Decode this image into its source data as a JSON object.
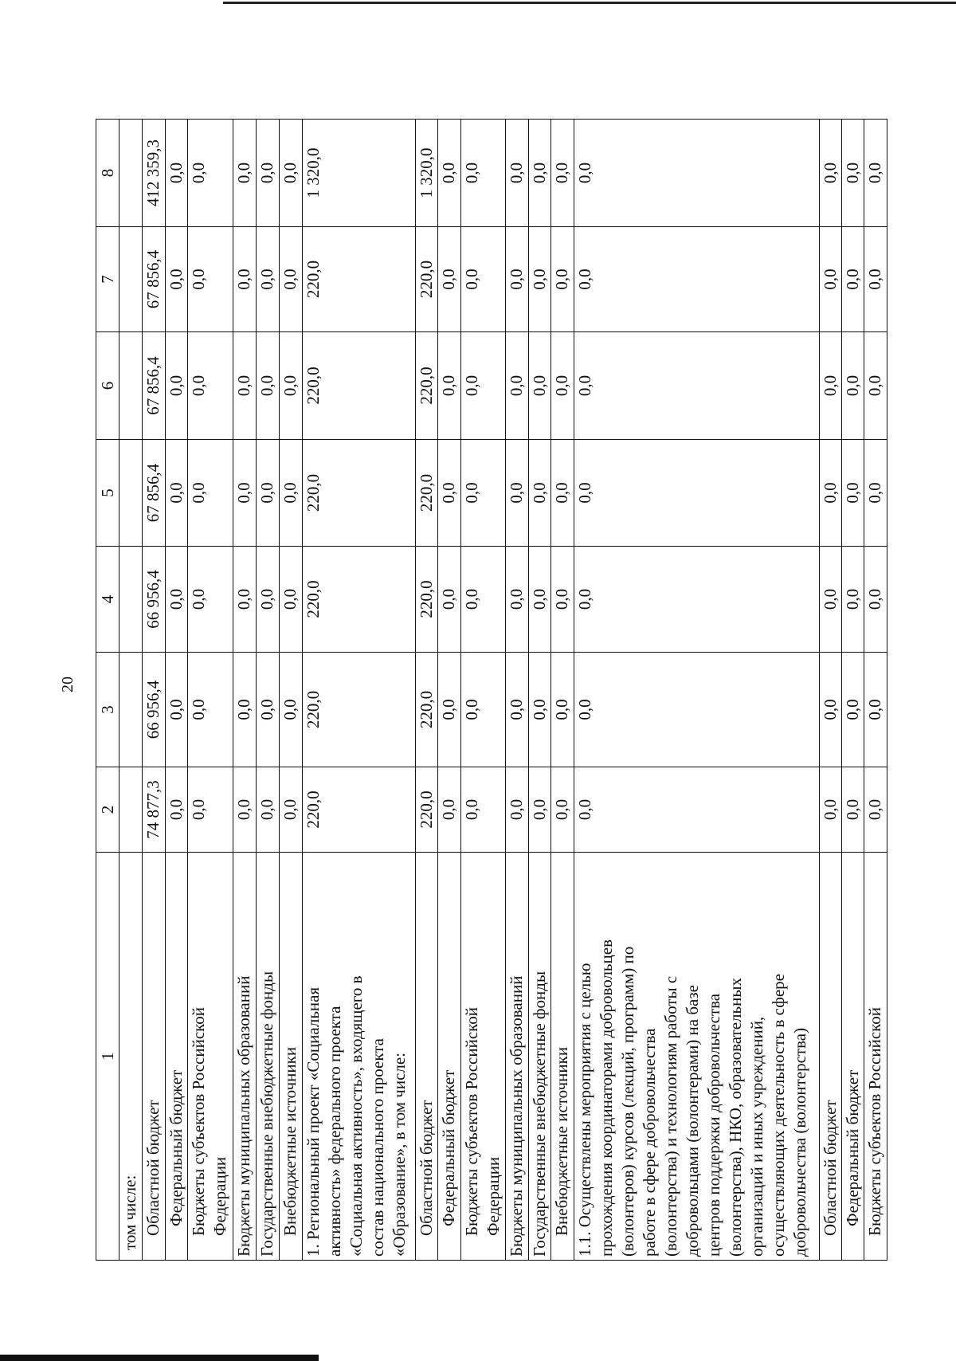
{
  "page_number": "20",
  "table": {
    "header": [
      "1",
      "2",
      "3",
      "4",
      "5",
      "6",
      "7",
      "8"
    ],
    "rows": [
      {
        "label": "том числе:",
        "indent": 1,
        "values": [
          "",
          "",
          "",
          "",
          "",
          "",
          ""
        ]
      },
      {
        "label": "Областной бюджет",
        "indent": 2,
        "values": [
          "74 877,3",
          "66 956,4",
          "66 956,4",
          "67 856,4",
          "67 856,4",
          "67 856,4",
          "412 359,3"
        ]
      },
      {
        "label": "Федеральный бюджет",
        "indent": 3,
        "values": [
          "0,0",
          "0,0",
          "0,0",
          "0,0",
          "0,0",
          "0,0",
          "0,0"
        ]
      },
      {
        "label": "Бюджеты субъектов Российской\nФедерации",
        "indent": 2,
        "values": [
          "0,0",
          "0,0",
          "0,0",
          "0,0",
          "0,0",
          "0,0",
          "0,0"
        ]
      },
      {
        "label": "Бюджеты муниципальных образований",
        "indent": 0,
        "values": [
          "0,0",
          "0,0",
          "0,0",
          "0,0",
          "0,0",
          "0,0",
          "0,0"
        ]
      },
      {
        "label": "Государственные внебюджетные фонды",
        "indent": 0,
        "values": [
          "0,0",
          "0,0",
          "0,0",
          "0,0",
          "0,0",
          "0,0",
          "0,0"
        ]
      },
      {
        "label": "Внебюджетные источники",
        "indent": 2,
        "values": [
          "0,0",
          "0,0",
          "0,0",
          "0,0",
          "0,0",
          "0,0",
          "0,0"
        ]
      },
      {
        "label": "1. Региональный проект «Социальная\nактивность» федерального проекта\n«Социальная активность», входящего в\nсостав национального проекта\n«Образование», в том числе:",
        "indent": 0,
        "values": [
          "220,0",
          "220,0",
          "220,0",
          "220,0",
          "220,0",
          "220,0",
          "1 320,0"
        ]
      },
      {
        "label": "Областной бюджет",
        "indent": 2,
        "values": [
          "220,0",
          "220,0",
          "220,0",
          "220,0",
          "220,0",
          "220,0",
          "1 320,0"
        ]
      },
      {
        "label": "Федеральный бюджет",
        "indent": 3,
        "values": [
          "0,0",
          "0,0",
          "0,0",
          "0,0",
          "0,0",
          "0,0",
          "0,0"
        ]
      },
      {
        "label": "Бюджеты субъектов Российской\nФедерации",
        "indent": 2,
        "values": [
          "0,0",
          "0,0",
          "0,0",
          "0,0",
          "0,0",
          "0,0",
          "0,0"
        ]
      },
      {
        "label": "Бюджеты муниципальных образований",
        "indent": 0,
        "values": [
          "0,0",
          "0,0",
          "0,0",
          "0,0",
          "0,0",
          "0,0",
          "0,0"
        ]
      },
      {
        "label": "Государственные внебюджетные фонды",
        "indent": 0,
        "values": [
          "0,0",
          "0,0",
          "0,0",
          "0,0",
          "0,0",
          "0,0",
          "0,0"
        ]
      },
      {
        "label": "Внебюджетные источники",
        "indent": 2,
        "values": [
          "0,0",
          "0,0",
          "0,0",
          "0,0",
          "0,0",
          "0,0",
          "0,0"
        ]
      },
      {
        "label": "1.1. Осуществлены мероприятия с целью\nпрохождения координаторами добровольцев\n(волонтеров) курсов (лекций, программ) по\nработе в сфере добровольчества\n(волонтерства) и технологиям работы с\nдобровольцами (волонтерами) на базе\nцентров поддержки добровольчества\n(волонтерства), НКО, образовательных\nорганизаций и иных учреждений,\nосуществляющих деятельность в сфере\nдобровольчества (волонтерства)",
        "indent": 0,
        "values": [
          "0,0",
          "0,0",
          "0,0",
          "0,0",
          "0,0",
          "0,0",
          "0,0"
        ]
      },
      {
        "label": "Областной бюджет",
        "indent": 2,
        "values": [
          "0,0",
          "0,0",
          "0,0",
          "0,0",
          "0,0",
          "0,0",
          "0,0"
        ]
      },
      {
        "label": "Федеральный бюджет",
        "indent": 3,
        "values": [
          "0,0",
          "0,0",
          "0,0",
          "0,0",
          "0,0",
          "0,0",
          "0,0"
        ]
      },
      {
        "label": "Бюджеты субъектов Российской",
        "indent": 2,
        "values": [
          "0,0",
          "0,0",
          "0,0",
          "0,0",
          "0,0",
          "0,0",
          "0,0"
        ]
      }
    ]
  }
}
